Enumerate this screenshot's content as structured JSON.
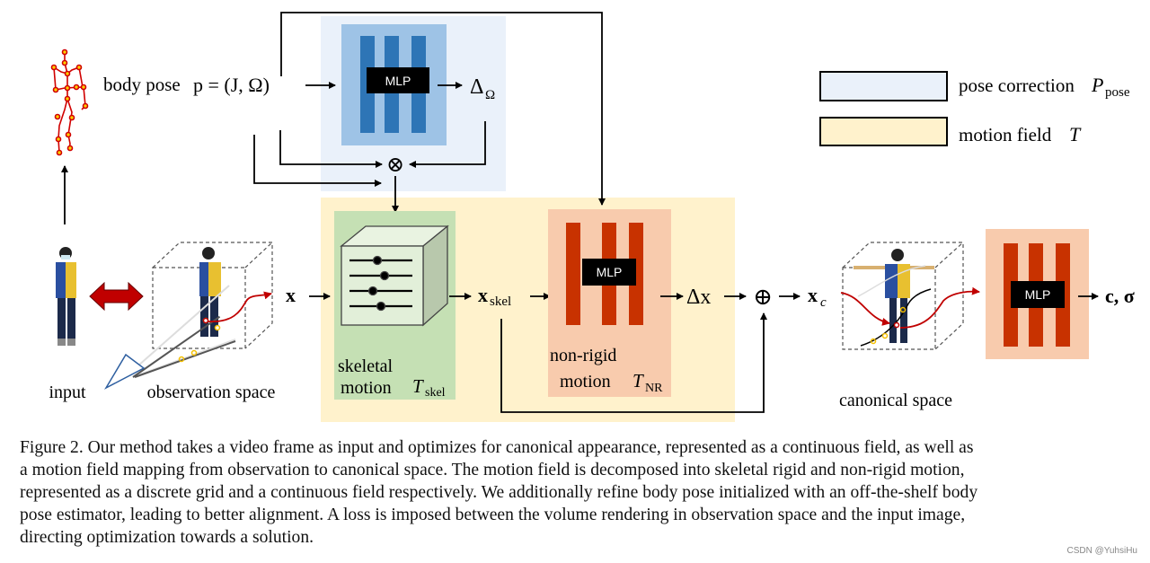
{
  "colors": {
    "pose_correction_bg": "#eaf1fa",
    "pose_mlp_bg": "#9ec3e6",
    "pose_mlp_bar": "#2e75b6",
    "motion_field_bg": "#fff2cc",
    "skeletal_bg": "#c5e0b4",
    "nonrigid_bg": "#f8cbad",
    "nonrigid_bar": "#c83200",
    "skeleton": "#d00000",
    "double_arrow": "#c00000"
  },
  "diagram": {
    "body_pose_label": "body pose",
    "body_pose_formula": "p = (J, Ω)",
    "mlp_label": "MLP",
    "delta_omega": "Δ",
    "delta_omega_sub": "Ω",
    "otimes": "⊗",
    "oplus": "⊕",
    "x_label": "x",
    "x_skel": "x",
    "x_skel_sub": "skel",
    "delta_x": "Δx",
    "x_c": "x",
    "x_c_sub": "c",
    "output": "c, σ",
    "skeletal_line1": "skeletal",
    "skeletal_line2": "motion",
    "skeletal_symbol": "T",
    "skeletal_symbol_sub": "skel",
    "nonrigid_line1": "non-rigid",
    "nonrigid_line2": "motion",
    "nonrigid_symbol": "T",
    "nonrigid_symbol_sub": "NR",
    "input_label": "input",
    "observation_label": "observation space",
    "canonical_label": "canonical space"
  },
  "legend": [
    {
      "label": "pose correction",
      "symbol": "P",
      "symbol_sub": "pose",
      "color": "#eaf1fa"
    },
    {
      "label": "motion field",
      "symbol": "T",
      "symbol_sub": "",
      "color": "#fff2cc"
    }
  ],
  "caption": [
    "Figure 2. Our method takes a video frame as input and optimizes for canonical appearance, represented as a continuous field, as well as",
    "a motion field mapping from observation to canonical space.  The motion field is decomposed into skeletal rigid and non-rigid motion,",
    "represented as a discrete grid and a continuous field respectively. We additionally refine body pose initialized with an off-the-shelf body",
    "pose estimator, leading to better alignment.  A loss is imposed between the volume rendering in observation space and the input image,",
    "directing optimization towards a solution."
  ],
  "watermark": "CSDN @YuhsiHu"
}
